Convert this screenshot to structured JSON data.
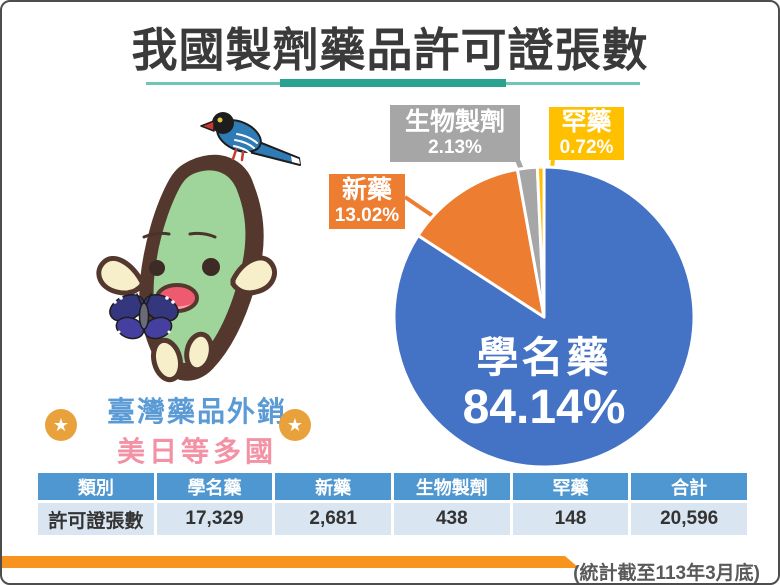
{
  "title": "我國製劑藥品許可證張數",
  "mascot": {
    "caption_line1": "臺灣藥品外銷",
    "caption_line2": "美日等多國",
    "star_glyph": "★"
  },
  "chart_data": {
    "type": "pie",
    "title": "我國製劑藥品許可證張數",
    "direction": "clockwise",
    "start_angle_deg": 0,
    "slices": [
      {
        "label": "學名藥",
        "percent": 84.14,
        "percent_label": "84.14%",
        "value": 17329,
        "color": "#4472C4"
      },
      {
        "label": "新藥",
        "percent": 13.02,
        "percent_label": "13.02%",
        "value": 2681,
        "color": "#ED7D31"
      },
      {
        "label": "生物製劑",
        "percent": 2.13,
        "percent_label": "2.13%",
        "value": 438,
        "color": "#A6A6A6"
      },
      {
        "label": "罕藥",
        "percent": 0.72,
        "percent_label": "0.72%",
        "value": 148,
        "color": "#FFC000"
      }
    ]
  },
  "table": {
    "header": [
      "類別",
      "學名藥",
      "新藥",
      "生物製劑",
      "罕藥",
      "合計"
    ],
    "row_label": "許可證張數",
    "values": [
      "17,329",
      "2,681",
      "438",
      "148",
      "20,596"
    ]
  },
  "footnote": "(統計截至113年3月底)",
  "colors": {
    "title_text": "#3A3A3A",
    "teal_line_thin": "#6CC7B6",
    "teal_line_thick": "#29A38F",
    "table_header_bg": "#4F97D0",
    "table_row_bg": "#D9E5F1",
    "ribbon_orange": "#F7941D",
    "caption_blue": "#5B9BD5",
    "caption_pink": "#F391A5",
    "star_badge": "#E9A23B"
  }
}
